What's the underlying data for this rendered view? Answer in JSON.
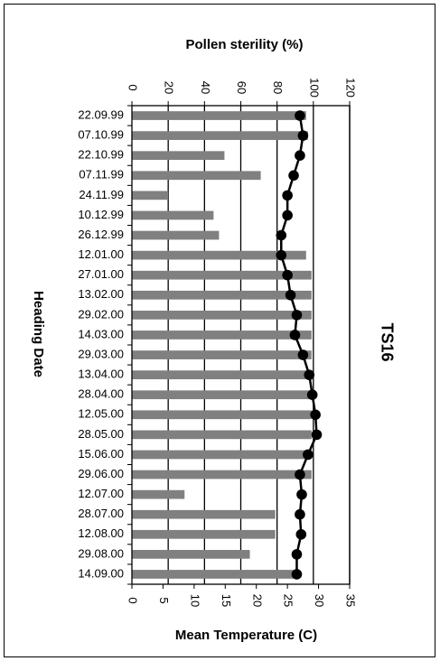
{
  "chart_data": {
    "type": "bar",
    "panel_label": "TS16",
    "top_axis_title": "Pollen sterility (%)",
    "bottom_axis_title": "Mean Temperature (C)",
    "y_axis_title": "Heading Date",
    "top_axis": {
      "min": 0,
      "max": 120,
      "ticks": [
        "0",
        "20",
        "40",
        "60",
        "80",
        "100",
        "120"
      ]
    },
    "bottom_axis": {
      "min": 0,
      "max": 35,
      "ticks": [
        "0",
        "5",
        "10",
        "15",
        "20",
        "25",
        "30",
        "35"
      ]
    },
    "grid": true,
    "categories": [
      "22.09.99",
      "07.10.99",
      "22.10.99",
      "07.11.99",
      "24.11.99",
      "10.12.99",
      "26.12.99",
      "12.01.00",
      "27.01.00",
      "13.02.00",
      "29.02.00",
      "14.03.00",
      "29.03.00",
      "13.04.00",
      "28.04.00",
      "12.05.00",
      "28.05.00",
      "15.06.00",
      "29.06.00",
      "12.07.00",
      "28.07.00",
      "12.08.00",
      "29.08.00",
      "14.09.00"
    ],
    "series": [
      {
        "kind": "bar",
        "axis": "top",
        "color": "#808080",
        "values": [
          96,
          97,
          51,
          71,
          20,
          45,
          48,
          96,
          99,
          99,
          99,
          99,
          99,
          99,
          99,
          99,
          99,
          99,
          99,
          29,
          79,
          79,
          65,
          92
        ]
      },
      {
        "kind": "line",
        "axis": "bottom",
        "color": "#000000",
        "values": [
          27,
          27.5,
          27,
          26,
          25,
          25,
          24,
          24,
          25,
          25.5,
          26.5,
          26.2,
          27.5,
          28.5,
          29,
          29.5,
          29.7,
          28.3,
          27,
          27.3,
          27,
          27.2,
          26.5,
          26.5
        ]
      }
    ]
  }
}
